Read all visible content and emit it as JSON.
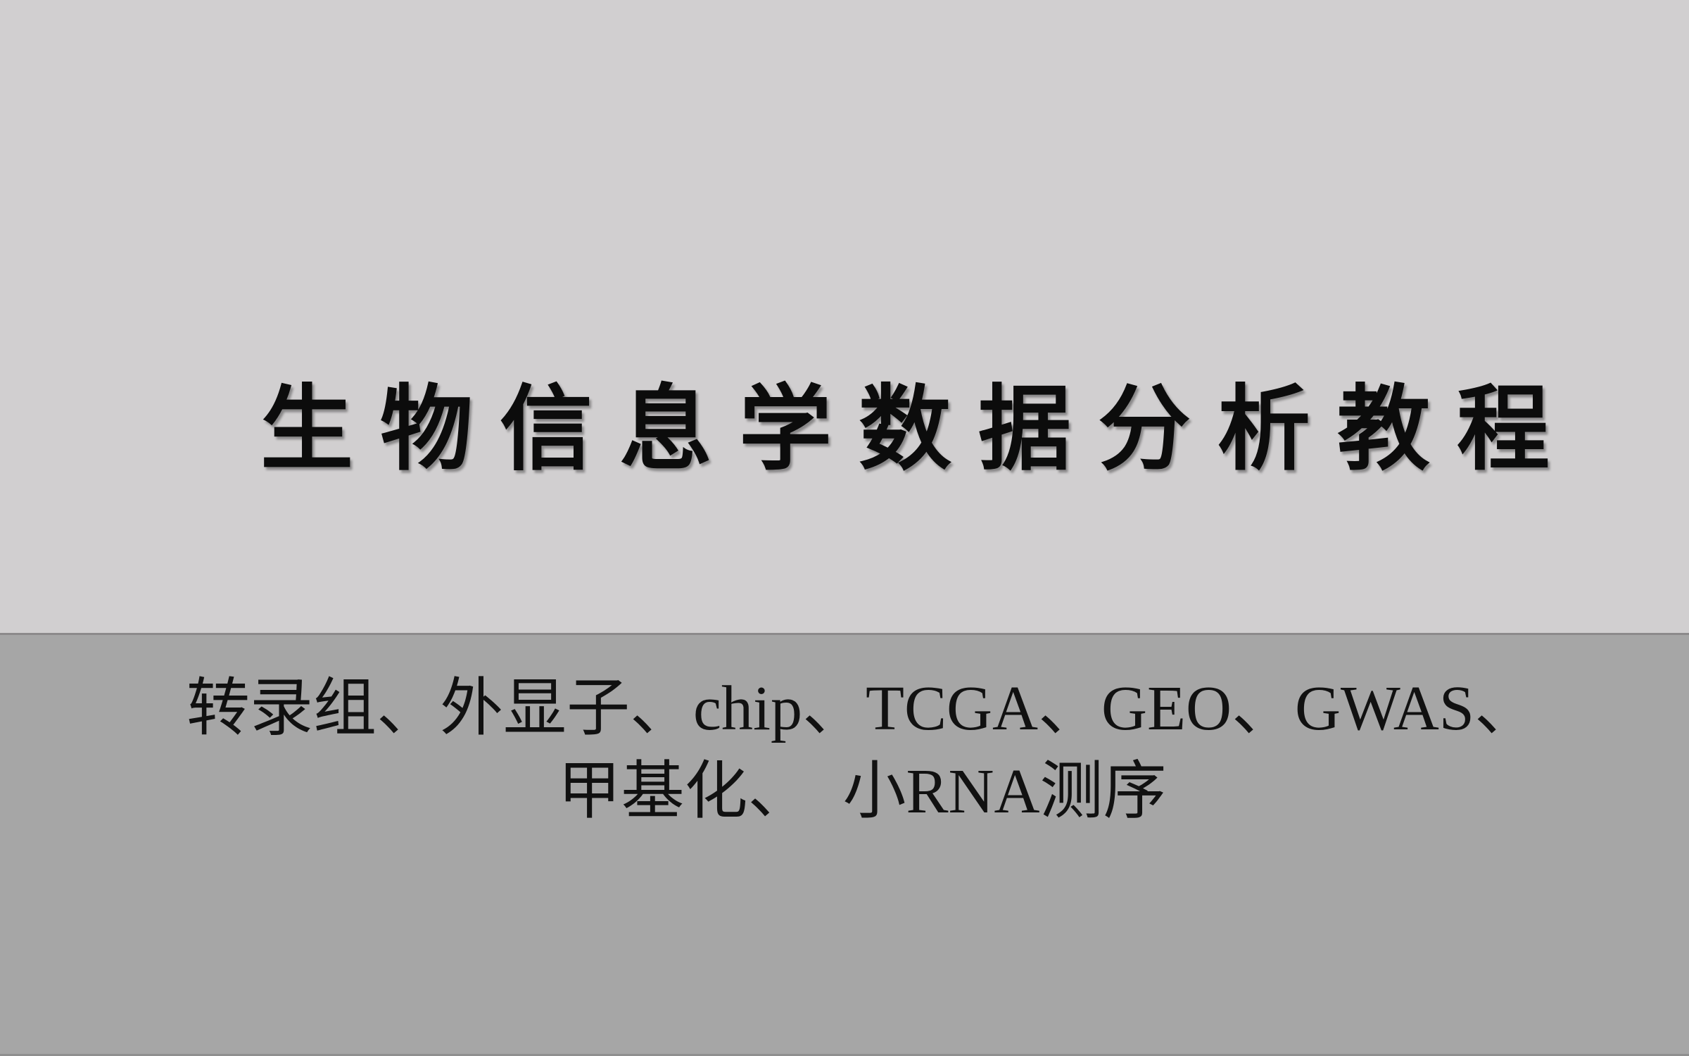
{
  "slide": {
    "title": "生物信息学数据分析教程",
    "subtitle_line1": "转录组、外显子、chip、TCGA、GEO、GWAS、",
    "subtitle_line2": "甲基化、　小RNA测序"
  },
  "colors": {
    "top_background": "#d1cfd0",
    "bottom_background": "#a6a6a6",
    "divider": "#8c8a8b",
    "text": "#0c0c0c"
  }
}
